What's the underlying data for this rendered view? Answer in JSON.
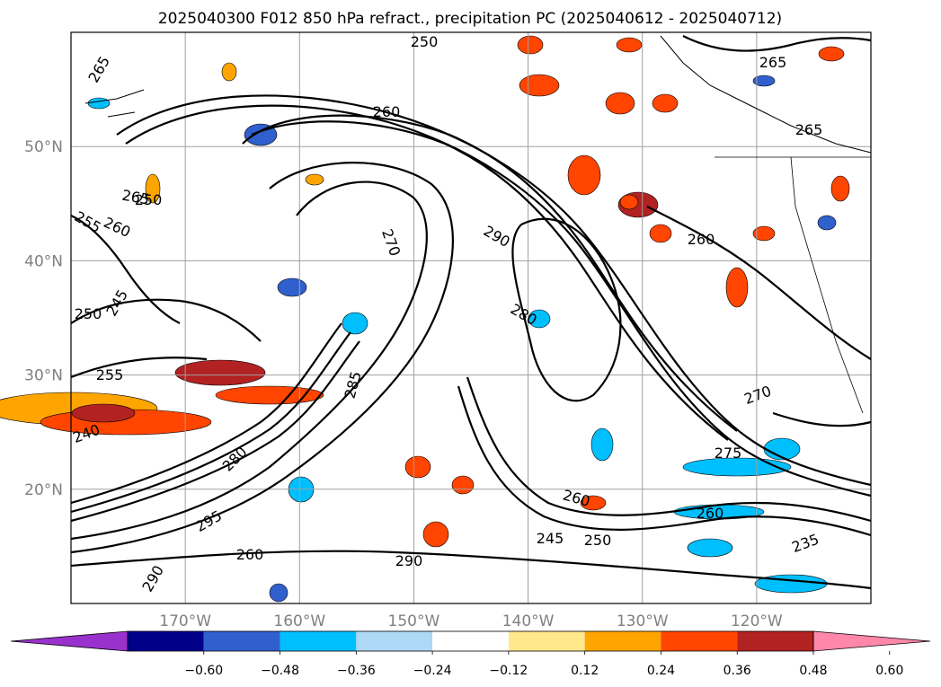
{
  "chart_data": {
    "type": "heatmap",
    "title": "2025040300 F012 850 hPa refract., precipitation PC (2025040612 - 2025040712)",
    "map": {
      "lon_range": [
        -180,
        -110
      ],
      "lat_range": [
        10,
        60
      ],
      "x_ticks": [
        "170°W",
        "160°W",
        "150°W",
        "140°W",
        "130°W",
        "120°W"
      ],
      "x_tick_values": [
        -170,
        -160,
        -150,
        -140,
        -130,
        -120
      ],
      "y_ticks": [
        "20°N",
        "30°N",
        "40°N",
        "50°N"
      ],
      "y_tick_values": [
        20,
        30,
        40,
        50
      ],
      "grid": true
    },
    "contours": {
      "variable": "850 hPa refractivity",
      "labels": [
        "265",
        "250",
        "255",
        "260",
        "245",
        "250",
        "265",
        "265",
        "260",
        "265",
        "250",
        "255",
        "290",
        "270",
        "280",
        "260",
        "260",
        "245",
        "250",
        "240",
        "235",
        "270",
        "275",
        "260",
        "280",
        "285",
        "290",
        "295",
        "290",
        "260"
      ]
    },
    "colorbar": {
      "ticks": [
        "−0.60",
        "−0.48",
        "−0.36",
        "−0.24",
        "−0.12",
        "0.12",
        "0.24",
        "0.36",
        "0.48",
        "0.60"
      ],
      "tick_values": [
        -0.6,
        -0.48,
        -0.36,
        -0.24,
        -0.12,
        0.12,
        0.24,
        0.36,
        0.48,
        0.6
      ],
      "colors": [
        "#9932cc",
        "#00008b",
        "#3060cd",
        "#00bfff",
        "#add8f6",
        "#ffffff",
        "#ffe88a",
        "#ffa500",
        "#ff4500",
        "#b22222",
        "#ff88aa"
      ],
      "extend": "both"
    }
  }
}
